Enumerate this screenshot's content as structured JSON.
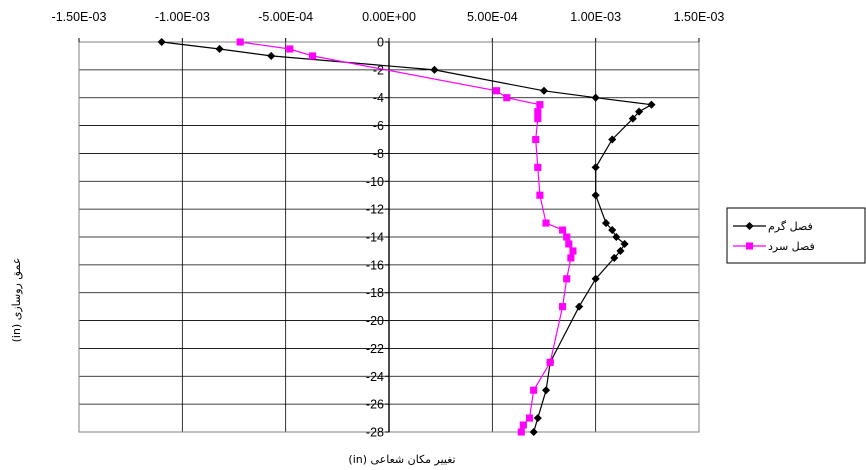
{
  "chart_data": {
    "type": "scatter",
    "xlabel": "تغییر مکان شعاعی (in)",
    "ylabel": "عمق روسازی (in)",
    "xlim": [
      -0.0015,
      0.0015
    ],
    "ylim": [
      -28,
      0
    ],
    "x_ticks": [
      "-1.50E-03",
      "-1.00E-03",
      "-5.00E-04",
      "0.00E+00",
      "5.00E-04",
      "1.00E-03",
      "1.50E-03"
    ],
    "x_tick_values": [
      -0.0015,
      -0.001,
      -0.0005,
      0,
      0.0005,
      0.001,
      0.0015
    ],
    "y_ticks": [
      "0",
      "-2",
      "-4",
      "-6",
      "-8",
      "-10",
      "-12",
      "-14",
      "-16",
      "-18",
      "-20",
      "-22",
      "-24",
      "-26",
      "-28"
    ],
    "y_tick_values": [
      0,
      -2,
      -4,
      -6,
      -8,
      -10,
      -12,
      -14,
      -16,
      -18,
      -20,
      -22,
      -24,
      -26,
      -28
    ],
    "grid": true,
    "legend_position": "right",
    "series": [
      {
        "name": "فصل گرم",
        "color": "#000000",
        "marker": "diamond",
        "x": [
          -0.0011,
          -0.00082,
          -0.00057,
          0.00022,
          0.00075,
          0.001,
          0.00127,
          0.00121,
          0.00118,
          0.00108,
          0.001,
          0.001,
          0.00105,
          0.00108,
          0.0011,
          0.00114,
          0.00112,
          0.00109,
          0.001,
          0.00092,
          0.00078,
          0.00076,
          0.00072,
          0.0007
        ],
        "y": [
          0,
          -0.5,
          -1,
          -2,
          -3.5,
          -4,
          -4.5,
          -5,
          -5.5,
          -7,
          -9,
          -11,
          -13,
          -13.5,
          -14,
          -14.5,
          -15,
          -15.5,
          -17,
          -19,
          -23,
          -25,
          -27,
          -28
        ]
      },
      {
        "name": "فصل سرد",
        "color": "#ff00ff",
        "marker": "square",
        "x": [
          -0.00072,
          -0.00048,
          -0.00037,
          0.00052,
          0.00057,
          0.00073,
          0.00072,
          0.00072,
          0.00071,
          0.00072,
          0.00073,
          0.00076,
          0.00084,
          0.00086,
          0.00087,
          0.00089,
          0.00088,
          0.00086,
          0.00084,
          0.00078,
          0.0007,
          0.00068,
          0.00065,
          0.00064
        ],
        "y": [
          0,
          -0.5,
          -1,
          -3.5,
          -4,
          -4.5,
          -5,
          -5.5,
          -7,
          -9,
          -11,
          -13,
          -13.5,
          -14,
          -14.5,
          -15,
          -15.5,
          -17,
          -19,
          -23,
          -25,
          -27,
          -27.5,
          -28
        ]
      }
    ]
  }
}
